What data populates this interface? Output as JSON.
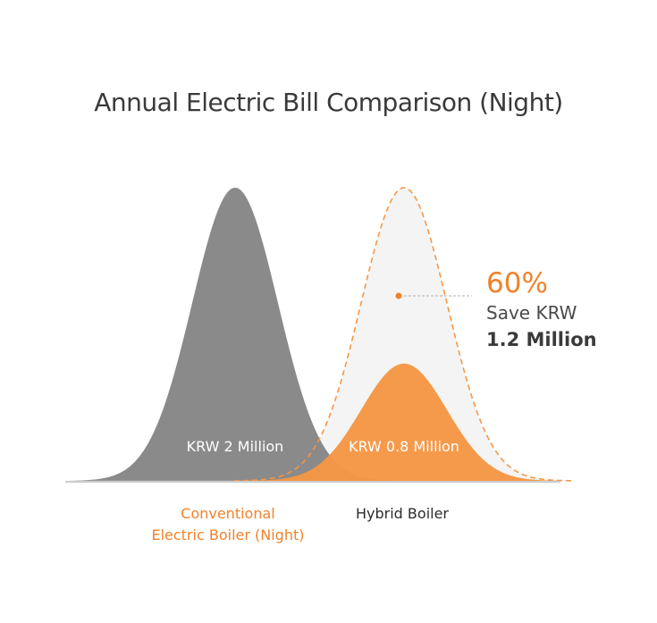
{
  "title": "Annual Electric Bill Comparison (Night)",
  "colors": {
    "conventional": "#8a8a8a",
    "hybrid": "#f59745",
    "accent": "#f0822b",
    "baseline": "#cccccc",
    "reference_fill": "#f4f4f4"
  },
  "chart_data": {
    "type": "area",
    "categories": [
      "Conventional\nElectric Boiler (Night)",
      "Hybrid Boiler"
    ],
    "series": [
      {
        "values": [
          2.0,
          0.8
        ]
      }
    ],
    "value_labels": [
      "KRW 2 Million",
      "KRW 0.8 Million"
    ],
    "reference_value": 2.0,
    "unit": "KRW Million",
    "annotation": {
      "percent": "60%",
      "line1": "Save KRW",
      "line2": "1.2 Million"
    },
    "grid": false,
    "legend": "none"
  }
}
